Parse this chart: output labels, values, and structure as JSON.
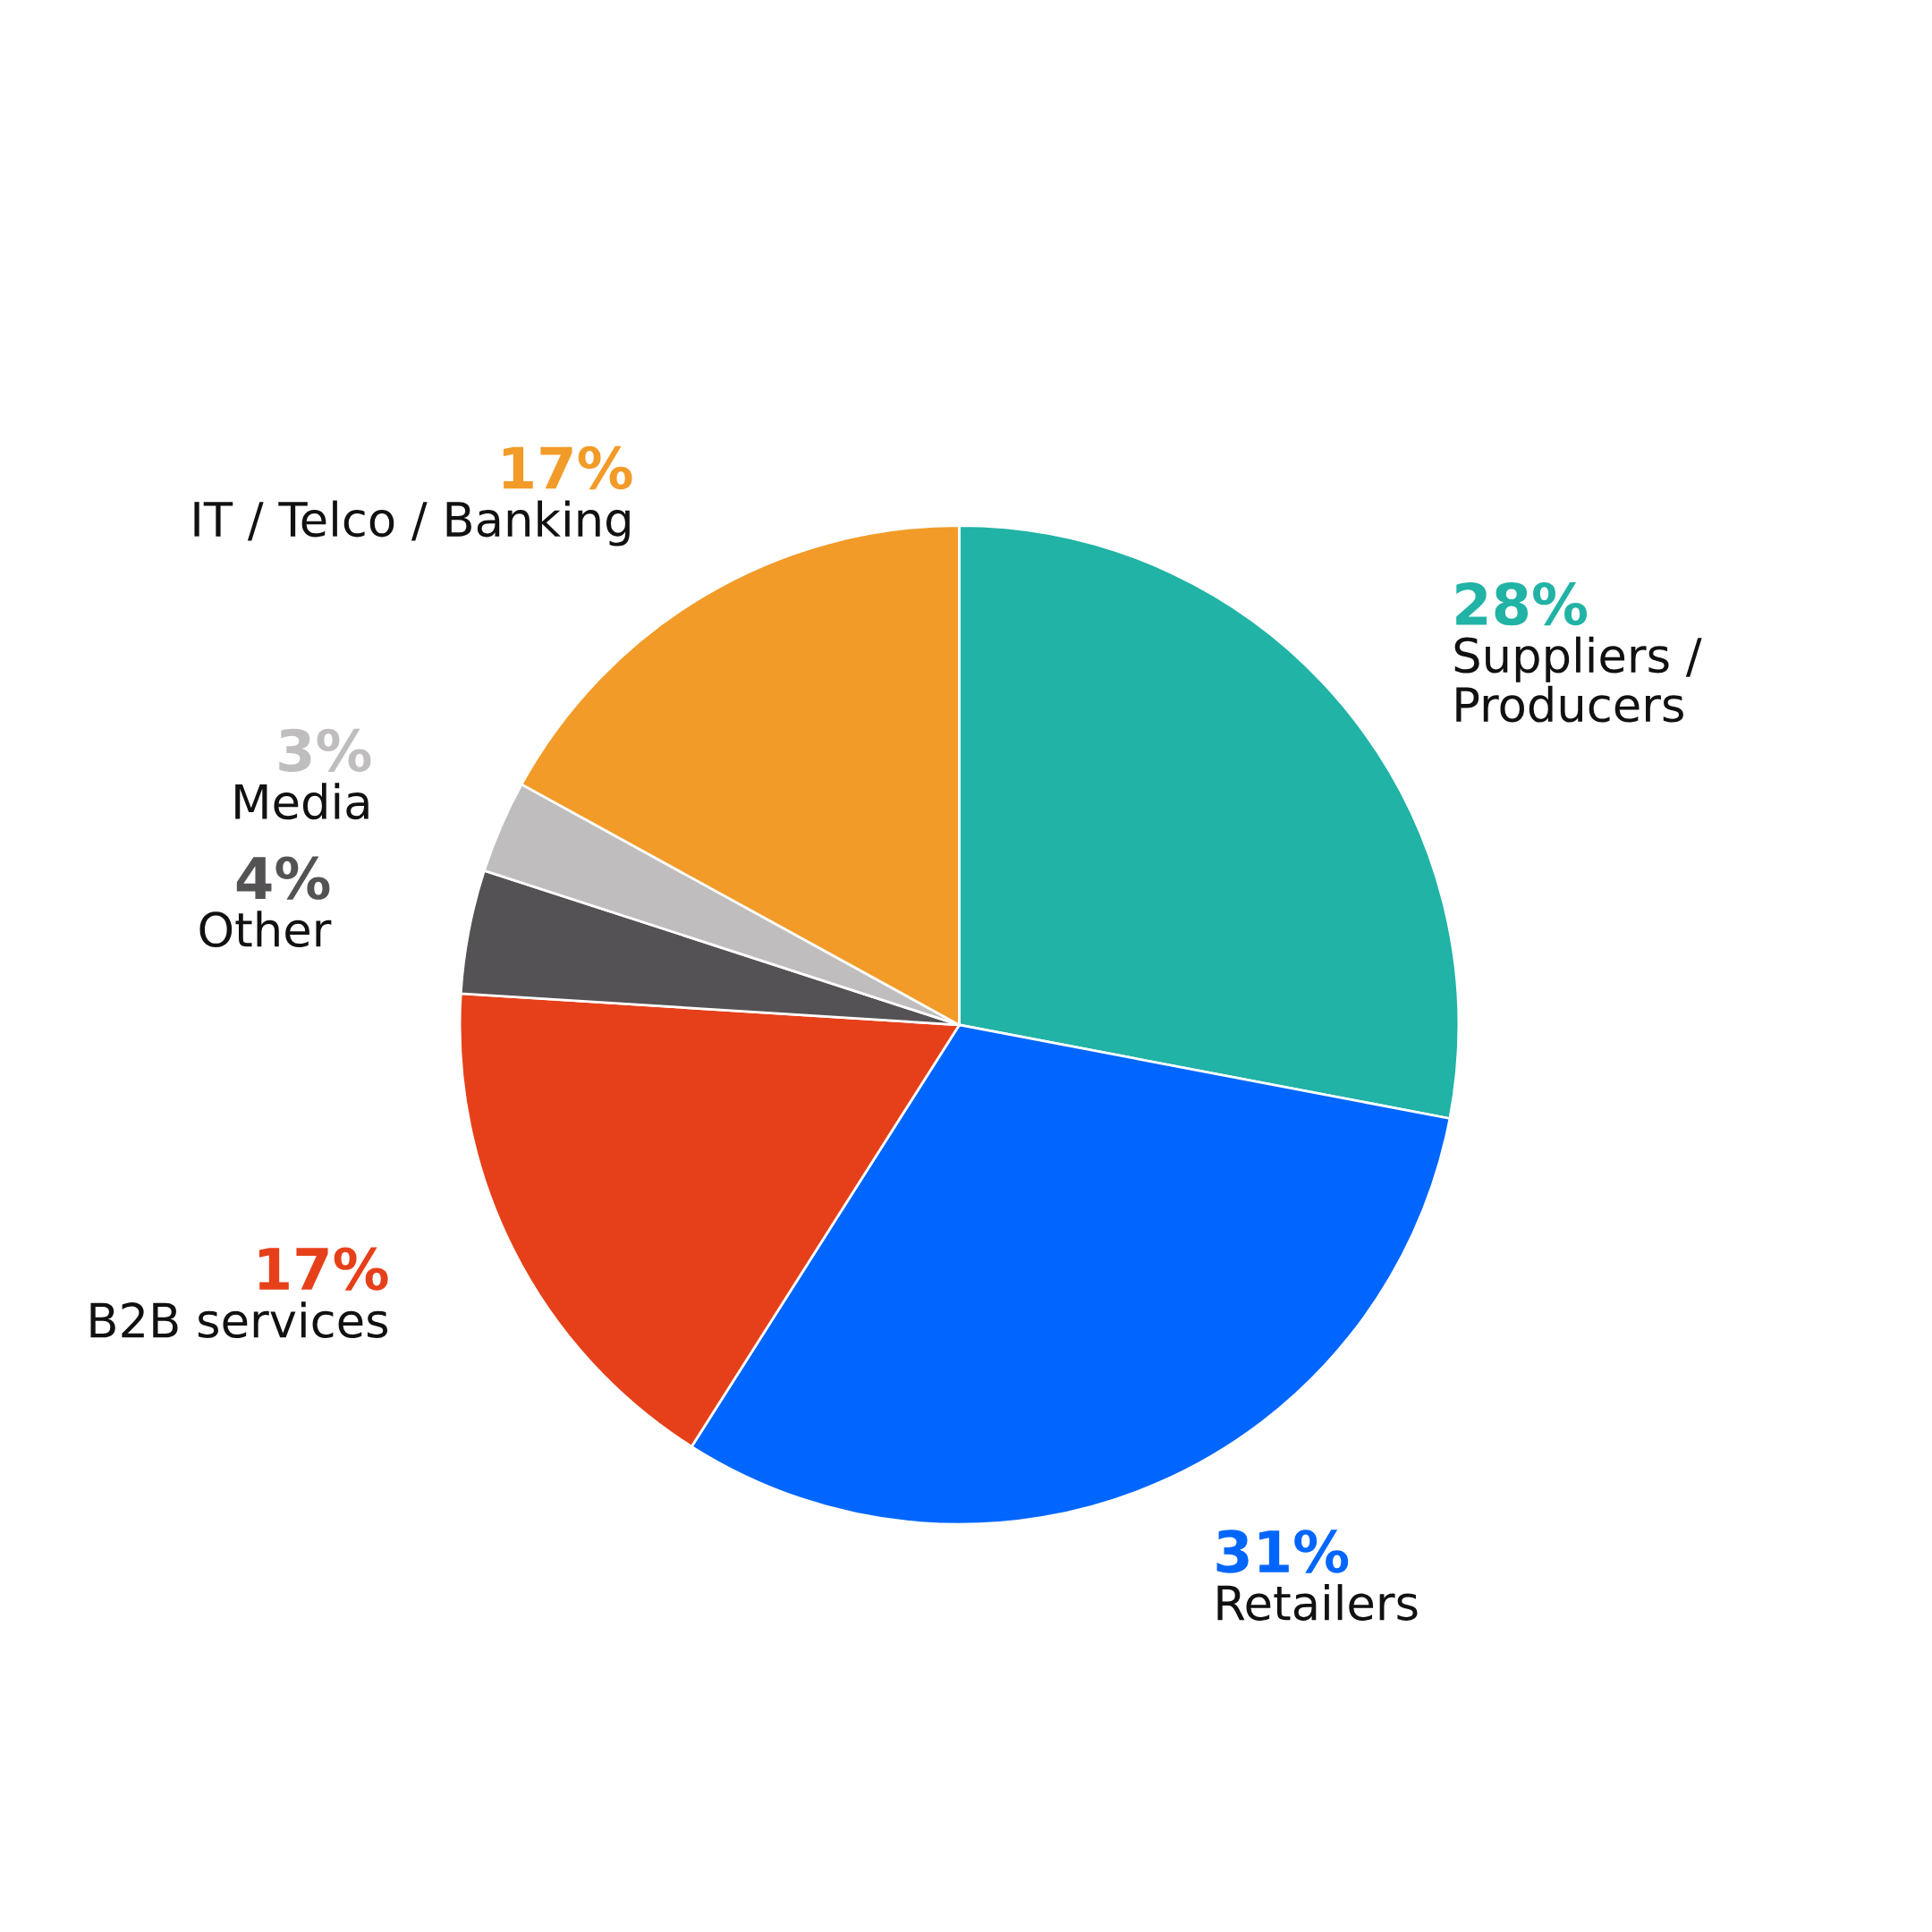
{
  "chart_data": {
    "type": "pie",
    "categories": [
      "Suppliers /\nProducers",
      "Retailers",
      "B2B services",
      "Other",
      "Media",
      "IT / Telco / Banking"
    ],
    "values": [
      28,
      31,
      17,
      4,
      3,
      17
    ],
    "value_labels": [
      "28%",
      "31%",
      "17%",
      "4%",
      "3%",
      "17%"
    ],
    "colors": [
      "#21b3a5",
      "#0066ff",
      "#e6401a",
      "#555255",
      "#c0bdbf",
      "#f29b28"
    ]
  }
}
